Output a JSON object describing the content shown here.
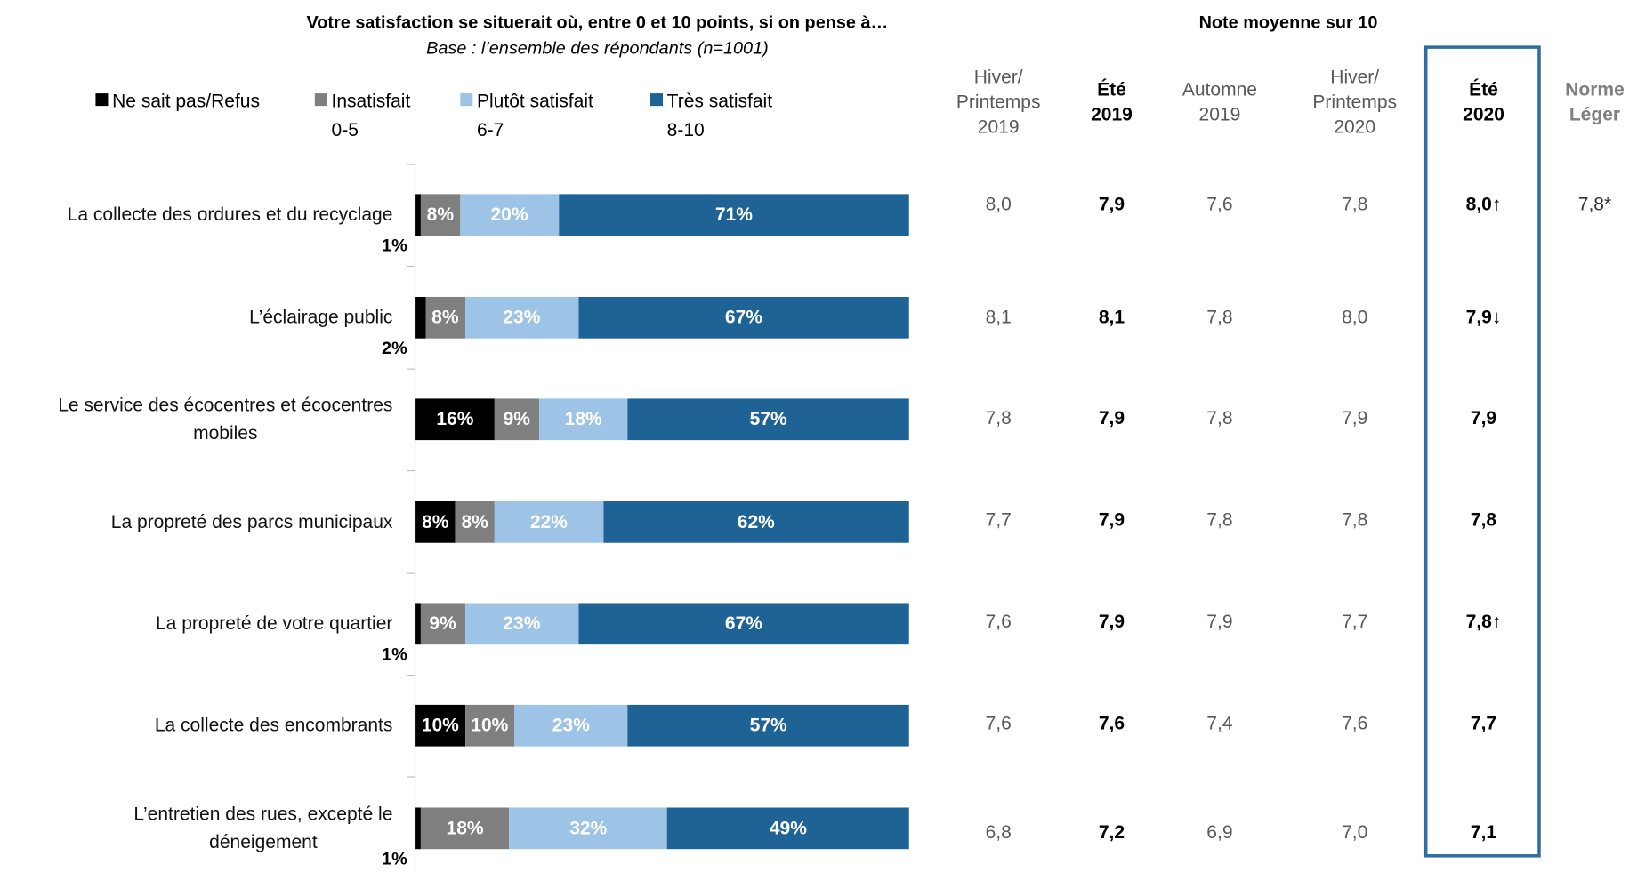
{
  "chart_data": {
    "type": "bar",
    "orientation": "horizontal",
    "stacked": true,
    "title": "Votre satisfaction se situerait où, entre 0 et 10 points, si on pense à…",
    "subtitle": "Base : l’ensemble des répondants (n=1001)",
    "categories": [
      "La collecte des ordures et du recyclage",
      "L’éclairage public",
      "Le service des écocentres et écocentres\nmobiles",
      "La propreté des parcs municipaux",
      "La propreté de votre quartier",
      "La collecte des encombrants",
      "L’entretien des rues, excepté le\ndéneigement"
    ],
    "xlim": [
      0,
      100
    ],
    "series": [
      {
        "name": "Ne sait pas/Refus",
        "color": "#000000",
        "values": [
          1,
          2,
          16,
          8,
          1,
          10,
          1
        ],
        "value_labels": [
          "1%",
          "2%",
          "16%",
          "8%",
          "1%",
          "10%",
          "1%"
        ]
      },
      {
        "name": "Insatisfait\n0-5",
        "color": "#7f7f7f",
        "values": [
          8,
          8,
          9,
          8,
          9,
          10,
          18
        ],
        "value_labels": [
          "8%",
          "8%",
          "9%",
          "8%",
          "9%",
          "10%",
          "18%"
        ]
      },
      {
        "name": "Plutôt satisfait\n6-7",
        "color": "#9dc3e6",
        "values": [
          20,
          23,
          18,
          22,
          23,
          23,
          32
        ],
        "value_labels": [
          "20%",
          "23%",
          "18%",
          "22%",
          "23%",
          "23%",
          "32%"
        ]
      },
      {
        "name": "Très satisfait\n8-10",
        "color": "#1f6396",
        "values": [
          71,
          67,
          57,
          62,
          67,
          57,
          49
        ],
        "value_labels": [
          "71%",
          "67%",
          "57%",
          "62%",
          "67%",
          "57%",
          "49%"
        ]
      }
    ]
  },
  "table": {
    "title": "Note moyenne sur 10",
    "columns": [
      "Hiver/\nPrintemps\n2019",
      "Été\n2019",
      "Automne\n2019",
      "Hiver/\nPrintemps\n2020",
      "Été\n2020",
      "Norme\nLéger"
    ],
    "rows": [
      [
        "8,0",
        "7,9",
        "7,6",
        "7,8",
        "8,0↑",
        "7,8*"
      ],
      [
        "8,1",
        "8,1",
        "7,8",
        "8,0",
        "7,9↓",
        null
      ],
      [
        "7,8",
        "7,9",
        "7,8",
        "7,9",
        "7,9",
        null
      ],
      [
        "7,7",
        "7,9",
        "7,8",
        "7,8",
        "7,8",
        null
      ],
      [
        "7,6",
        "7,9",
        "7,9",
        "7,7",
        "7,8↑",
        null
      ],
      [
        "7,6",
        "7,6",
        "7,4",
        "7,6",
        "7,7",
        null
      ],
      [
        "6,8",
        "7,2",
        "6,9",
        "7,0",
        "7,1",
        null
      ]
    ]
  }
}
